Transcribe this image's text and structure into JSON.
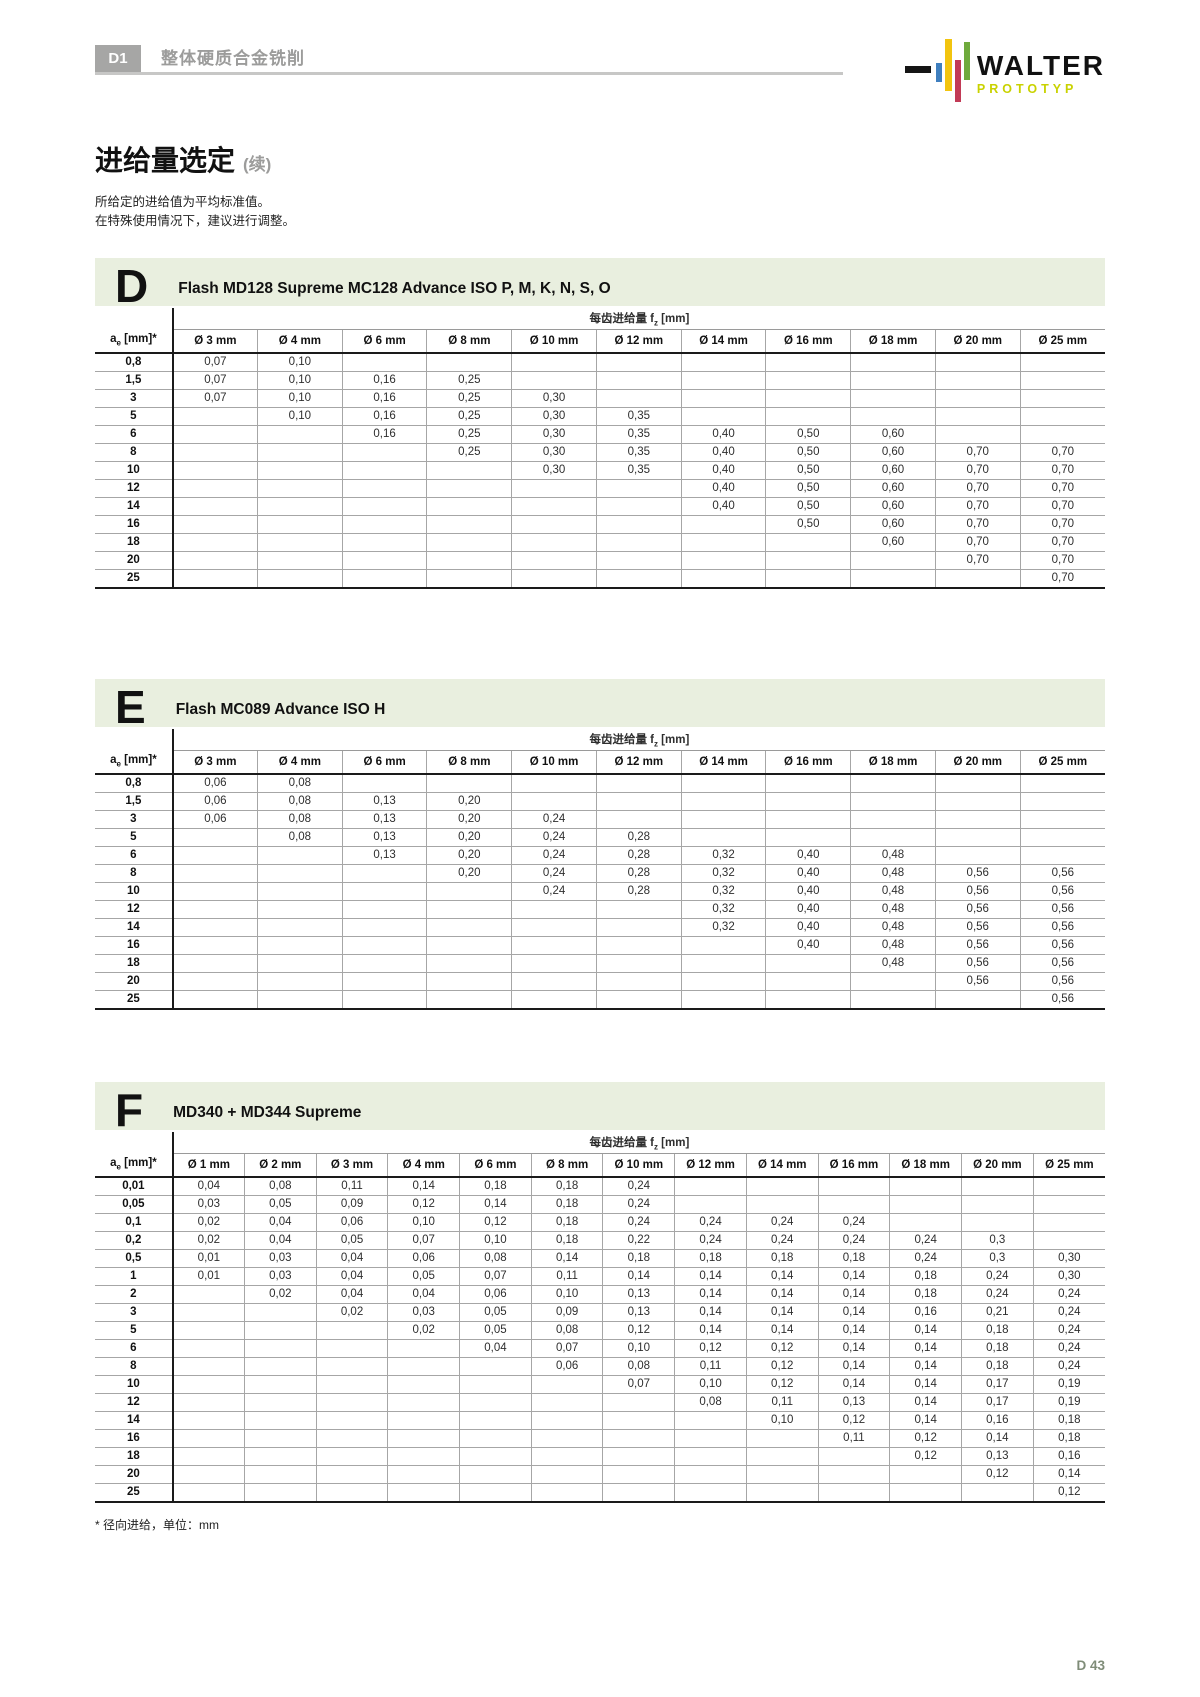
{
  "header": {
    "badge": "D1",
    "section_title": "整体硬质合金铣削",
    "logo": {
      "brand": "WALTER",
      "sub_brand": "PROTOTYP"
    }
  },
  "title": {
    "text": "进给量选定",
    "suffix": "(续)"
  },
  "intro_lines": [
    "所给定的进给值为平均标准值。",
    "在特殊使用情况下，建议进行调整。"
  ],
  "table_common": {
    "unit_prefix": "每齿进给量 f",
    "unit_sub": "z",
    "unit_suffix": " [mm]",
    "ae_prefix": "a",
    "ae_sub": "e",
    "ae_suffix": " [mm]*",
    "ae_col_width_percent": 7.7
  },
  "colors": {
    "band_green": "#e9efdf",
    "badge_gray": "#a6a6a5",
    "section_title_gray": "#9c9c9b",
    "prototyp_yellow_green": "#c9d200",
    "logo_blue": "#3f7fbf",
    "logo_yellow": "#f2c40f",
    "logo_red": "#c23a56",
    "logo_green": "#6faa3c"
  },
  "tables": [
    {
      "letter": "D",
      "title": "Flash MD128 Supreme MC128 Advance ISO P, M, K, N, S, O",
      "columns": [
        "Ø 3 mm",
        "Ø 4 mm",
        "Ø 6 mm",
        "Ø 8 mm",
        "Ø 10 mm",
        "Ø 12 mm",
        "Ø 14 mm",
        "Ø 16 mm",
        "Ø 18 mm",
        "Ø 20 mm",
        "Ø 25 mm"
      ],
      "rows": [
        {
          "ae": "0,8",
          "values": [
            "0,07",
            "0,10",
            "",
            "",
            "",
            "",
            "",
            "",
            "",
            "",
            ""
          ]
        },
        {
          "ae": "1,5",
          "values": [
            "0,07",
            "0,10",
            "0,16",
            "0,25",
            "",
            "",
            "",
            "",
            "",
            "",
            ""
          ]
        },
        {
          "ae": "3",
          "values": [
            "0,07",
            "0,10",
            "0,16",
            "0,25",
            "0,30",
            "",
            "",
            "",
            "",
            "",
            ""
          ]
        },
        {
          "ae": "5",
          "values": [
            "",
            "0,10",
            "0,16",
            "0,25",
            "0,30",
            "0,35",
            "",
            "",
            "",
            "",
            ""
          ]
        },
        {
          "ae": "6",
          "values": [
            "",
            "",
            "0,16",
            "0,25",
            "0,30",
            "0,35",
            "0,40",
            "0,50",
            "0,60",
            "",
            ""
          ]
        },
        {
          "ae": "8",
          "values": [
            "",
            "",
            "",
            "0,25",
            "0,30",
            "0,35",
            "0,40",
            "0,50",
            "0,60",
            "0,70",
            "0,70"
          ]
        },
        {
          "ae": "10",
          "values": [
            "",
            "",
            "",
            "",
            "0,30",
            "0,35",
            "0,40",
            "0,50",
            "0,60",
            "0,70",
            "0,70"
          ]
        },
        {
          "ae": "12",
          "values": [
            "",
            "",
            "",
            "",
            "",
            "",
            "0,40",
            "0,50",
            "0,60",
            "0,70",
            "0,70"
          ]
        },
        {
          "ae": "14",
          "values": [
            "",
            "",
            "",
            "",
            "",
            "",
            "0,40",
            "0,50",
            "0,60",
            "0,70",
            "0,70"
          ]
        },
        {
          "ae": "16",
          "values": [
            "",
            "",
            "",
            "",
            "",
            "",
            "",
            "0,50",
            "0,60",
            "0,70",
            "0,70"
          ]
        },
        {
          "ae": "18",
          "values": [
            "",
            "",
            "",
            "",
            "",
            "",
            "",
            "",
            "0,60",
            "0,70",
            "0,70"
          ]
        },
        {
          "ae": "20",
          "values": [
            "",
            "",
            "",
            "",
            "",
            "",
            "",
            "",
            "",
            "0,70",
            "0,70"
          ]
        },
        {
          "ae": "25",
          "values": [
            "",
            "",
            "",
            "",
            "",
            "",
            "",
            "",
            "",
            "",
            "0,70"
          ]
        }
      ]
    },
    {
      "letter": "E",
      "title": "Flash MC089 Advance ISO H",
      "columns": [
        "Ø 3 mm",
        "Ø 4 mm",
        "Ø 6 mm",
        "Ø 8 mm",
        "Ø 10 mm",
        "Ø 12 mm",
        "Ø 14 mm",
        "Ø 16 mm",
        "Ø 18 mm",
        "Ø 20 mm",
        "Ø 25 mm"
      ],
      "rows": [
        {
          "ae": "0,8",
          "values": [
            "0,06",
            "0,08",
            "",
            "",
            "",
            "",
            "",
            "",
            "",
            "",
            ""
          ]
        },
        {
          "ae": "1,5",
          "values": [
            "0,06",
            "0,08",
            "0,13",
            "0,20",
            "",
            "",
            "",
            "",
            "",
            "",
            ""
          ]
        },
        {
          "ae": "3",
          "values": [
            "0,06",
            "0,08",
            "0,13",
            "0,20",
            "0,24",
            "",
            "",
            "",
            "",
            "",
            ""
          ]
        },
        {
          "ae": "5",
          "values": [
            "",
            "0,08",
            "0,13",
            "0,20",
            "0,24",
            "0,28",
            "",
            "",
            "",
            "",
            ""
          ]
        },
        {
          "ae": "6",
          "values": [
            "",
            "",
            "0,13",
            "0,20",
            "0,24",
            "0,28",
            "0,32",
            "0,40",
            "0,48",
            "",
            ""
          ]
        },
        {
          "ae": "8",
          "values": [
            "",
            "",
            "",
            "0,20",
            "0,24",
            "0,28",
            "0,32",
            "0,40",
            "0,48",
            "0,56",
            "0,56"
          ]
        },
        {
          "ae": "10",
          "values": [
            "",
            "",
            "",
            "",
            "0,24",
            "0,28",
            "0,32",
            "0,40",
            "0,48",
            "0,56",
            "0,56"
          ]
        },
        {
          "ae": "12",
          "values": [
            "",
            "",
            "",
            "",
            "",
            "",
            "0,32",
            "0,40",
            "0,48",
            "0,56",
            "0,56"
          ]
        },
        {
          "ae": "14",
          "values": [
            "",
            "",
            "",
            "",
            "",
            "",
            "0,32",
            "0,40",
            "0,48",
            "0,56",
            "0,56"
          ]
        },
        {
          "ae": "16",
          "values": [
            "",
            "",
            "",
            "",
            "",
            "",
            "",
            "0,40",
            "0,48",
            "0,56",
            "0,56"
          ]
        },
        {
          "ae": "18",
          "values": [
            "",
            "",
            "",
            "",
            "",
            "",
            "",
            "",
            "0,48",
            "0,56",
            "0,56"
          ]
        },
        {
          "ae": "20",
          "values": [
            "",
            "",
            "",
            "",
            "",
            "",
            "",
            "",
            "",
            "0,56",
            "0,56"
          ]
        },
        {
          "ae": "25",
          "values": [
            "",
            "",
            "",
            "",
            "",
            "",
            "",
            "",
            "",
            "",
            "0,56"
          ]
        }
      ]
    },
    {
      "letter": "F",
      "title": "MD340 + MD344 Supreme",
      "columns": [
        "Ø 1 mm",
        "Ø 2 mm",
        "Ø 3 mm",
        "Ø 4 mm",
        "Ø 6 mm",
        "Ø 8 mm",
        "Ø 10 mm",
        "Ø 12 mm",
        "Ø 14 mm",
        "Ø 16 mm",
        "Ø 18 mm",
        "Ø 20 mm",
        "Ø 25 mm"
      ],
      "rows": [
        {
          "ae": "0,01",
          "values": [
            "0,04",
            "0,08",
            "0,11",
            "0,14",
            "0,18",
            "0,18",
            "0,24",
            "",
            "",
            "",
            "",
            "",
            ""
          ]
        },
        {
          "ae": "0,05",
          "values": [
            "0,03",
            "0,05",
            "0,09",
            "0,12",
            "0,14",
            "0,18",
            "0,24",
            "",
            "",
            "",
            "",
            "",
            ""
          ]
        },
        {
          "ae": "0,1",
          "values": [
            "0,02",
            "0,04",
            "0,06",
            "0,10",
            "0,12",
            "0,18",
            "0,24",
            "0,24",
            "0,24",
            "0,24",
            "",
            "",
            ""
          ]
        },
        {
          "ae": "0,2",
          "values": [
            "0,02",
            "0,04",
            "0,05",
            "0,07",
            "0,10",
            "0,18",
            "0,22",
            "0,24",
            "0,24",
            "0,24",
            "0,24",
            "0,3",
            ""
          ]
        },
        {
          "ae": "0,5",
          "values": [
            "0,01",
            "0,03",
            "0,04",
            "0,06",
            "0,08",
            "0,14",
            "0,18",
            "0,18",
            "0,18",
            "0,18",
            "0,24",
            "0,3",
            "0,30"
          ]
        },
        {
          "ae": "1",
          "values": [
            "0,01",
            "0,03",
            "0,04",
            "0,05",
            "0,07",
            "0,11",
            "0,14",
            "0,14",
            "0,14",
            "0,14",
            "0,18",
            "0,24",
            "0,30"
          ]
        },
        {
          "ae": "2",
          "values": [
            "",
            "0,02",
            "0,04",
            "0,04",
            "0,06",
            "0,10",
            "0,13",
            "0,14",
            "0,14",
            "0,14",
            "0,18",
            "0,24",
            "0,24"
          ]
        },
        {
          "ae": "3",
          "values": [
            "",
            "",
            "0,02",
            "0,03",
            "0,05",
            "0,09",
            "0,13",
            "0,14",
            "0,14",
            "0,14",
            "0,16",
            "0,21",
            "0,24"
          ]
        },
        {
          "ae": "5",
          "values": [
            "",
            "",
            "",
            "0,02",
            "0,05",
            "0,08",
            "0,12",
            "0,14",
            "0,14",
            "0,14",
            "0,14",
            "0,18",
            "0,24"
          ]
        },
        {
          "ae": "6",
          "values": [
            "",
            "",
            "",
            "",
            "0,04",
            "0,07",
            "0,10",
            "0,12",
            "0,12",
            "0,14",
            "0,14",
            "0,18",
            "0,24"
          ]
        },
        {
          "ae": "8",
          "values": [
            "",
            "",
            "",
            "",
            "",
            "0,06",
            "0,08",
            "0,11",
            "0,12",
            "0,14",
            "0,14",
            "0,18",
            "0,24"
          ]
        },
        {
          "ae": "10",
          "values": [
            "",
            "",
            "",
            "",
            "",
            "",
            "0,07",
            "0,10",
            "0,12",
            "0,14",
            "0,14",
            "0,17",
            "0,19"
          ]
        },
        {
          "ae": "12",
          "values": [
            "",
            "",
            "",
            "",
            "",
            "",
            "",
            "0,08",
            "0,11",
            "0,13",
            "0,14",
            "0,17",
            "0,19"
          ]
        },
        {
          "ae": "14",
          "values": [
            "",
            "",
            "",
            "",
            "",
            "",
            "",
            "",
            "0,10",
            "0,12",
            "0,14",
            "0,16",
            "0,18"
          ]
        },
        {
          "ae": "16",
          "values": [
            "",
            "",
            "",
            "",
            "",
            "",
            "",
            "",
            "",
            "0,11",
            "0,12",
            "0,14",
            "0,18"
          ]
        },
        {
          "ae": "18",
          "values": [
            "",
            "",
            "",
            "",
            "",
            "",
            "",
            "",
            "",
            "",
            "0,12",
            "0,13",
            "0,16"
          ]
        },
        {
          "ae": "20",
          "values": [
            "",
            "",
            "",
            "",
            "",
            "",
            "",
            "",
            "",
            "",
            "",
            "0,12",
            "0,14"
          ]
        },
        {
          "ae": "25",
          "values": [
            "",
            "",
            "",
            "",
            "",
            "",
            "",
            "",
            "",
            "",
            "",
            "",
            "0,12"
          ]
        }
      ]
    }
  ],
  "footnote": "* 径向进给，单位：mm",
  "page_number": "D 43"
}
